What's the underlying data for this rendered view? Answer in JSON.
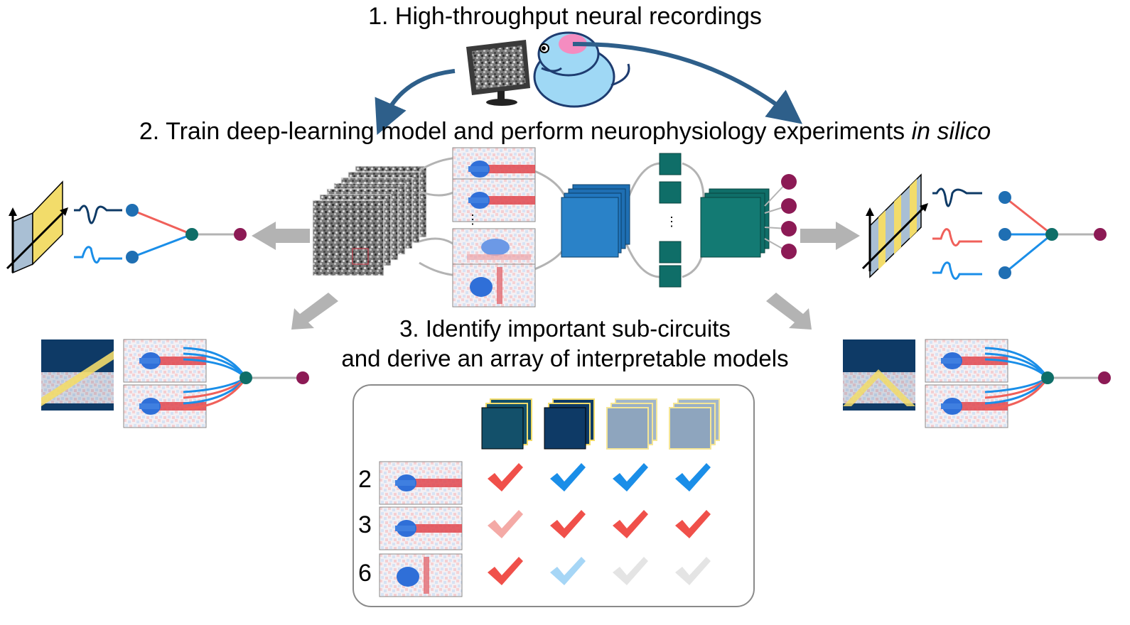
{
  "header": {
    "step1": "1. High-throughput neural recordings",
    "step2_prefix": "2. Train deep-learning model and perform neurophysiology experiments ",
    "step2_italic": "in silico",
    "step3_line1": "3. Identify important sub-circuits",
    "step3_line2": "and derive an array of interpretable models"
  },
  "table": {
    "row_labels": [
      "2",
      "3",
      "6"
    ],
    "checks": [
      [
        "red",
        "blue",
        "blue",
        "blue"
      ],
      [
        "pink",
        "red",
        "red",
        "red"
      ],
      [
        "red",
        "lightblue",
        "grey",
        "grey"
      ]
    ]
  },
  "colors": {
    "red": "#f0504a",
    "pink": "#f4aaa6",
    "blue": "#1a8ee8",
    "lightblue": "#a6d6f6",
    "grey": "#e4e4e4",
    "navy": "#0e3a66",
    "teal": "#0f6e68",
    "steel_blue": "#1f6fb3",
    "yellow": "#f2dc6a",
    "magenta": "#8c1a55",
    "arrow_blue": "#2e5f8a",
    "arrow_grey": "#b3b3b3",
    "mouse": "#9fd8f5",
    "brain": "#f48cc0"
  }
}
